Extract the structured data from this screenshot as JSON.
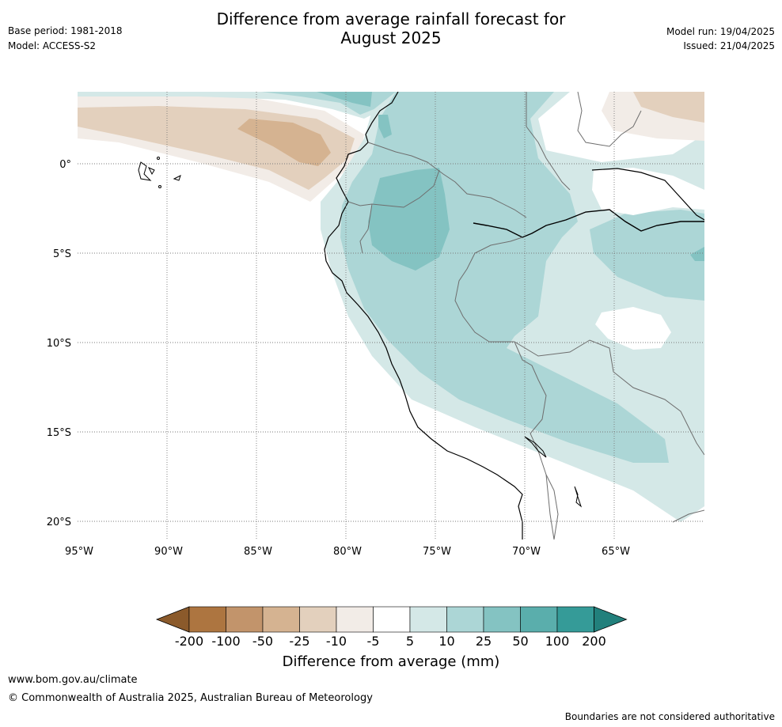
{
  "header": {
    "title_line1": "Difference from average rainfall forecast for",
    "title_line2": "August 2025",
    "base_period": "Base period: 1981-2018",
    "model": "Model: ACCESS-S2",
    "model_run": "Model run: 19/04/2025",
    "issued": "Issued: 21/04/2025"
  },
  "map": {
    "region": "Western South America (Ecuador, Peru, northern Chile, Bolivia, western Brazil)",
    "lon_ticks": [
      "95°W",
      "90°W",
      "85°W",
      "80°W",
      "75°W",
      "70°W",
      "65°W"
    ],
    "lat_ticks": [
      "0°",
      "5°S",
      "10°S",
      "15°S",
      "20°S"
    ],
    "grid": true
  },
  "colorbar": {
    "title": "Difference from average (mm)",
    "labels": [
      "-200",
      "-100",
      "-50",
      "-25",
      "-10",
      "-5",
      "5",
      "10",
      "25",
      "50",
      "100",
      "200"
    ],
    "colors": [
      "#8b5a2b",
      "#ad7540",
      "#c2946b",
      "#d5b391",
      "#e3d0bd",
      "#f2ece7",
      "#ffffff",
      "#d4e8e7",
      "#acd6d6",
      "#84c3c2",
      "#5aaeac",
      "#359b98",
      "#22807c"
    ]
  },
  "footer": {
    "url": "www.bom.gov.au/climate",
    "copyright": "© Commonwealth of Australia 2025, Australian Bureau of Meteorology",
    "disclaimer": "Boundaries are not considered authoritative"
  }
}
